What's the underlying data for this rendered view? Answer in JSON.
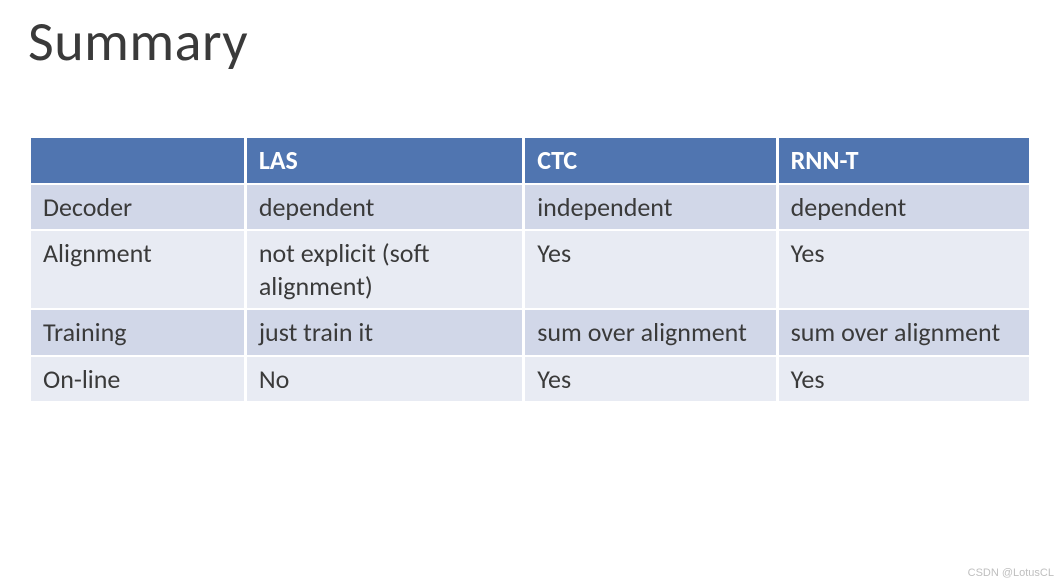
{
  "title": "Summary",
  "table": {
    "headers": [
      "",
      "LAS",
      "CTC",
      "RNN-T"
    ],
    "columns_width_pct": [
      17,
      22,
      20,
      20
    ],
    "header_bg": "#5075b0",
    "header_text_color": "#ffffff",
    "odd_row_bg": "#d1d7e8",
    "even_row_bg": "#e8ebf3",
    "cell_text_color": "#3a3a3a",
    "cell_fontsize": 26,
    "header_fontsize": 26,
    "header_fontweight": 700,
    "rows": [
      [
        "Decoder",
        "dependent",
        "independent",
        "dependent"
      ],
      [
        "Alignment",
        "not explicit (soft alignment)",
        "Yes",
        "Yes"
      ],
      [
        "Training",
        "just train it",
        "sum over alignment",
        "sum over alignment"
      ],
      [
        "On-line",
        "No",
        "Yes",
        "Yes"
      ]
    ]
  },
  "title_fontsize": 56,
  "title_fontweight": 300,
  "title_color": "#3a3a3a",
  "background_color": "#ffffff",
  "watermark": "CSDN @LotusCL"
}
